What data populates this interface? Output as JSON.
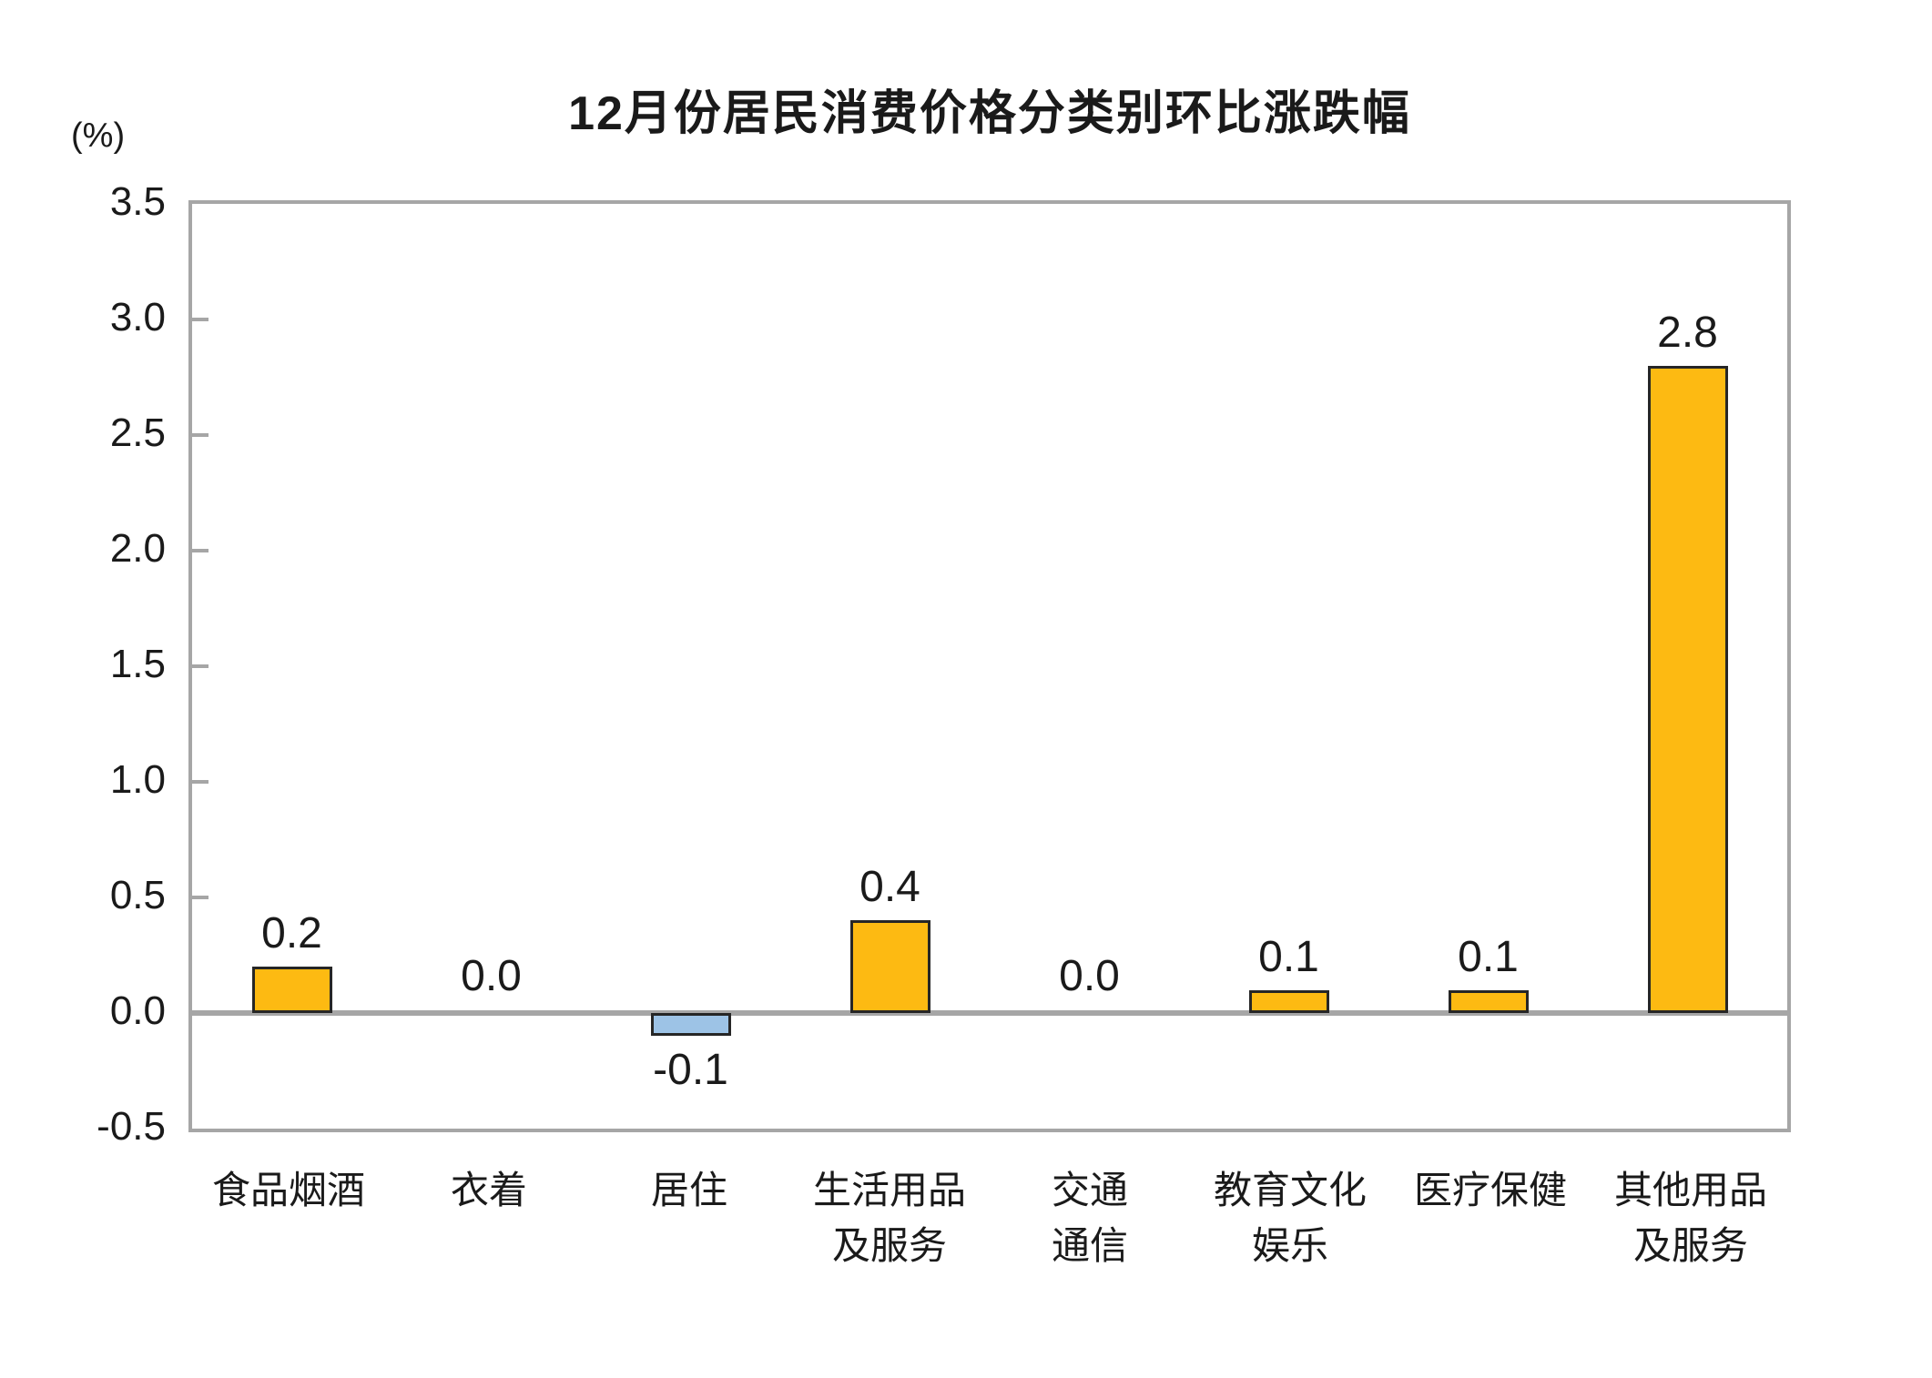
{
  "chart_data": {
    "type": "bar",
    "title": "12月份居民消费价格分类别环比涨跌幅",
    "ylabel": "(%)",
    "xlabel": "",
    "ylim": [
      -0.5,
      3.5
    ],
    "ytick_step": 0.5,
    "ytick_labels": [
      "3.5",
      "3.0",
      "2.5",
      "2.0",
      "1.5",
      "1.0",
      "0.5",
      "0.0",
      "-0.5"
    ],
    "grid": false,
    "legend_position": "none",
    "categories": [
      "食品烟酒",
      "衣着",
      "居住",
      "生活用品\n及服务",
      "交通\n通信",
      "教育文化\n娱乐",
      "医疗保健",
      "其他用品\n及服务"
    ],
    "values": [
      0.2,
      0.0,
      -0.1,
      0.4,
      0.0,
      0.1,
      0.1,
      2.8
    ],
    "value_labels": [
      "0.2",
      "0.0",
      "-0.1",
      "0.4",
      "0.0",
      "0.1",
      "0.1",
      "2.8"
    ],
    "colors": {
      "bar_positive": "#FDBA12",
      "bar_negative": "#9DC3E6",
      "bar_border": "#262626",
      "axis": "#A6A6A6",
      "text": "#1A1A1A"
    }
  }
}
